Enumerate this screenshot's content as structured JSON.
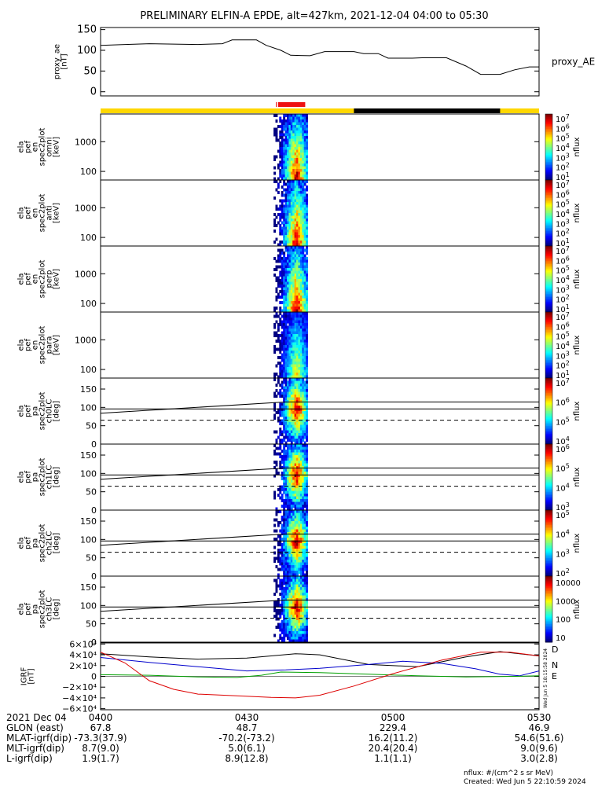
{
  "title": "PRELIMINARY ELFIN-A EPDE, alt=427km, 2021-12-04 04:00 to 05:30",
  "chart_data": [
    {
      "type": "line",
      "name": "proxy_ae",
      "ylabel": [
        "proxy_ae",
        "[nT]"
      ],
      "legend": "proxy_AE",
      "ylim": [
        -10,
        155
      ],
      "yticks": [
        "150",
        "100",
        "50",
        "0"
      ],
      "x_min": [
        0,
        90
      ],
      "points": [
        [
          0,
          112
        ],
        [
          5,
          114
        ],
        [
          10,
          116
        ],
        [
          15,
          115
        ],
        [
          20,
          114
        ],
        [
          25,
          116
        ],
        [
          27,
          125
        ],
        [
          32,
          125
        ],
        [
          34,
          112
        ],
        [
          37,
          100
        ],
        [
          39,
          88
        ],
        [
          43,
          87
        ],
        [
          46,
          97
        ],
        [
          52,
          97
        ],
        [
          54,
          92
        ],
        [
          57,
          92
        ],
        [
          59,
          81
        ],
        [
          64,
          81
        ],
        [
          66,
          82
        ],
        [
          71,
          82
        ],
        [
          75,
          62
        ],
        [
          78,
          42
        ],
        [
          82,
          42
        ],
        [
          85,
          53
        ],
        [
          88,
          60
        ],
        [
          90,
          60
        ]
      ]
    },
    {
      "type": "heatmap",
      "name": "spectrogram-panels",
      "x_min": [
        0,
        90
      ],
      "active_window_min": [
        35.5,
        42.5
      ],
      "panels": [
        {
          "ylabel": [
            "ela",
            "pef",
            "en",
            "spec2plot",
            "omni",
            "[keV]"
          ],
          "yticks": [
            "1000",
            "100"
          ],
          "cbar_min_exp": 1,
          "cbar_max_exp": 7,
          "cbar_label": "nflux"
        },
        {
          "ylabel": [
            "ela",
            "pef",
            "en",
            "spec2plot",
            "anti",
            "[keV]"
          ],
          "yticks": [
            "1000",
            "100"
          ],
          "cbar_min_exp": 1,
          "cbar_max_exp": 7,
          "cbar_label": "nflux"
        },
        {
          "ylabel": [
            "ela",
            "pef",
            "en",
            "spec2plot",
            "perp",
            "[keV]"
          ],
          "yticks": [
            "1000",
            "100"
          ],
          "cbar_min_exp": 1,
          "cbar_max_exp": 7,
          "cbar_label": "nflux"
        },
        {
          "ylabel": [
            "ela",
            "pef",
            "en",
            "spec2plot",
            "para",
            "[keV]"
          ],
          "yticks": [
            "1000",
            "100"
          ],
          "cbar_min_exp": 1,
          "cbar_max_exp": 7,
          "cbar_label": "nflux"
        },
        {
          "ylabel": [
            "ela",
            "pef",
            "pa",
            "spec2plot",
            "ch0LC",
            "[deg]"
          ],
          "yticks": [
            "150",
            "100",
            "50",
            "0"
          ],
          "cbar_min_exp": 4,
          "cbar_max_exp": 7,
          "cbar_label": "nflux"
        },
        {
          "ylabel": [
            "ela",
            "pef",
            "pa",
            "spec2plot",
            "ch1LC",
            "[deg]"
          ],
          "yticks": [
            "150",
            "100",
            "50",
            "0"
          ],
          "cbar_min_exp": 3,
          "cbar_max_exp": 6,
          "cbar_label": "nflux"
        },
        {
          "ylabel": [
            "ela",
            "pef",
            "pa",
            "spec2plot",
            "ch2LC",
            "[deg]"
          ],
          "yticks": [
            "150",
            "100",
            "50",
            "0"
          ],
          "cbar_min_exp": 2,
          "cbar_max_exp": 5,
          "cbar_label": "nflux"
        },
        {
          "ylabel": [
            "ela",
            "pef",
            "pa",
            "spec2plot",
            "ch3LC",
            "[deg]"
          ],
          "yticks": [
            "150",
            "100",
            "50",
            "0"
          ],
          "cbar_ticks": [
            "10000",
            "1000",
            "100",
            "10"
          ],
          "cbar_label": "nflux"
        }
      ]
    },
    {
      "type": "line",
      "name": "IGRF",
      "ylabel": [
        "IGRF",
        "[nT]"
      ],
      "ylim": [
        -62000,
        62000
      ],
      "yticks": [
        "6×10⁴",
        "4×10⁴",
        "2×10⁴",
        "0",
        "−2×10⁴",
        "−4×10⁴",
        "−6×10⁴"
      ],
      "series": [
        {
          "label": "D",
          "color": "#000000",
          "points": [
            [
              0,
              42000
            ],
            [
              10,
              36000
            ],
            [
              20,
              32000
            ],
            [
              30,
              34000
            ],
            [
              40,
              42000
            ],
            [
              45,
              40000
            ],
            [
              55,
              22000
            ],
            [
              65,
              18000
            ],
            [
              75,
              36000
            ],
            [
              82,
              46000
            ],
            [
              90,
              38000
            ]
          ]
        },
        {
          "label": "N",
          "color": "#0000cc",
          "points": [
            [
              0,
              35000
            ],
            [
              10,
              26000
            ],
            [
              20,
              18000
            ],
            [
              30,
              10000
            ],
            [
              38,
              12000
            ],
            [
              45,
              15000
            ],
            [
              55,
              22000
            ],
            [
              62,
              28000
            ],
            [
              70,
              24000
            ],
            [
              77,
              14000
            ],
            [
              82,
              4000
            ],
            [
              86,
              1000
            ],
            [
              90,
              10000
            ]
          ]
        },
        {
          "label": "E",
          "color": "#00a000",
          "points": [
            [
              0,
              3000
            ],
            [
              10,
              2000
            ],
            [
              20,
              -1000
            ],
            [
              28,
              -2000
            ],
            [
              33,
              2000
            ],
            [
              37,
              8000
            ],
            [
              45,
              7000
            ],
            [
              55,
              4000
            ],
            [
              65,
              1000
            ],
            [
              75,
              -1000
            ],
            [
              85,
              0
            ],
            [
              90,
              1000
            ]
          ]
        },
        {
          "label": "",
          "color": "#dd0000",
          "points": [
            [
              0,
              45000
            ],
            [
              5,
              25000
            ],
            [
              10,
              -8000
            ],
            [
              15,
              -24000
            ],
            [
              20,
              -33000
            ],
            [
              28,
              -36000
            ],
            [
              35,
              -39000
            ],
            [
              40,
              -40000
            ],
            [
              45,
              -35000
            ],
            [
              52,
              -18000
            ],
            [
              60,
              5000
            ],
            [
              70,
              30000
            ],
            [
              78,
              45000
            ],
            [
              84,
              45000
            ],
            [
              90,
              38000
            ]
          ]
        }
      ]
    }
  ],
  "orbit_table": {
    "row_labels": [
      "2021 Dec 04",
      "GLON (east)",
      "MLAT-igrf(dip)",
      "MLT-igrf(dip)",
      "L-igrf(dip)"
    ],
    "times": [
      "0400",
      "0430",
      "0500",
      "0530"
    ],
    "columns": [
      [
        "67.8",
        "-73.3(37.9)",
        "8.7(9.0)",
        "1.9(1.7)"
      ],
      [
        "48.7",
        "-70.2(-73.2)",
        "5.0(6.1)",
        "8.9(12.8)"
      ],
      [
        "229.4",
        "16.2(11.2)",
        "20.4(20.4)",
        "1.1(1.1)"
      ],
      [
        "46.9",
        "54.6(51.6)",
        "9.0(9.6)",
        "3.0(2.8)"
      ]
    ]
  },
  "footer": {
    "units": "nflux: #/(cm^2 s sr MeV)",
    "created": "Created: Wed Jun  5 22:10:59 2024",
    "side_stamp": "Wed Jun  5 18:15:58 2024"
  }
}
